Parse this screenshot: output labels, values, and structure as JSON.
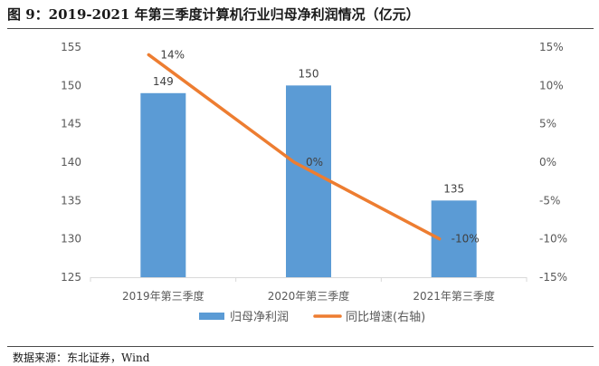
{
  "figure": {
    "title": "图 9：2019-2021 年第三季度计算机行业归母净利润情况（亿元）",
    "source": "数据来源：东北证券，Wind"
  },
  "chart_data": {
    "type": "bar",
    "categories": [
      "2019年第三季度",
      "2020年第三季度",
      "2021年第三季度"
    ],
    "series": [
      {
        "name": "归母净利润",
        "type": "bar",
        "axis": "left",
        "values": [
          149,
          150,
          135
        ],
        "labels": [
          "149",
          "150",
          "135"
        ],
        "color": "#5B9BD5"
      },
      {
        "name": "同比增速(右轴)",
        "type": "line",
        "axis": "right",
        "values": [
          14,
          0,
          -10
        ],
        "labels": [
          "14%",
          "0%",
          "-10%"
        ],
        "color": "#ED7D31"
      }
    ],
    "y_left": {
      "ylim": [
        125,
        155
      ],
      "ticks": [
        125,
        130,
        135,
        140,
        145,
        150,
        155
      ],
      "tick_labels": [
        "125",
        "130",
        "135",
        "140",
        "145",
        "150",
        "155"
      ]
    },
    "y_right": {
      "ylim": [
        -15,
        15
      ],
      "ticks": [
        -15,
        -10,
        -5,
        0,
        5,
        10,
        15
      ],
      "tick_labels": [
        "-15%",
        "-10%",
        "-5%",
        "0%",
        "5%",
        "10%",
        "15%"
      ]
    },
    "grid": false,
    "legend": "bottom-center"
  }
}
